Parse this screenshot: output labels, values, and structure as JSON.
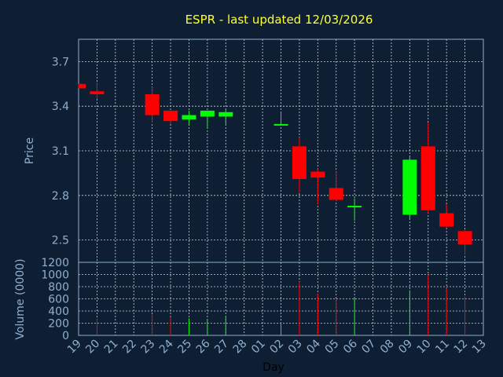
{
  "chart_data": {
    "type": "candlestick",
    "title": "ESPR - last updated 12/03/2026",
    "price_panel": {
      "ylabel": "Price",
      "yticks": [
        2.5,
        2.8,
        3.1,
        3.4,
        3.7
      ],
      "ylim": [
        2.35,
        3.85
      ]
    },
    "volume_panel": {
      "ylabel": "Volume (0000)",
      "yticks": [
        0,
        200,
        400,
        600,
        800,
        1000,
        1200
      ],
      "ylim": [
        0,
        1200
      ]
    },
    "xlabel": "Day",
    "x_ticks": [
      "19",
      "20",
      "21",
      "22",
      "23",
      "24",
      "25",
      "26",
      "27",
      "28",
      "01",
      "02",
      "03",
      "04",
      "05",
      "06",
      "07",
      "08",
      "09",
      "10",
      "11",
      "12",
      "13"
    ],
    "grid": true,
    "colors": {
      "up": "#00ff00",
      "down": "#ff0000",
      "background": "#0f1f33",
      "axis": "#8fb0d0",
      "title": "#ffff33"
    },
    "candles": [
      {
        "day": "19",
        "open": 3.55,
        "high": 3.55,
        "low": 3.52,
        "close": 3.52,
        "volume": 0
      },
      {
        "day": "20",
        "open": 3.5,
        "high": 3.56,
        "low": 3.45,
        "close": 3.48,
        "volume": 280
      },
      {
        "day": "23",
        "open": 3.48,
        "high": 3.53,
        "low": 3.29,
        "close": 3.34,
        "volume": 340
      },
      {
        "day": "24",
        "open": 3.37,
        "high": 3.37,
        "low": 3.28,
        "close": 3.3,
        "volume": 300
      },
      {
        "day": "25",
        "open": 3.31,
        "high": 3.37,
        "low": 3.28,
        "close": 3.34,
        "volume": 280
      },
      {
        "day": "26",
        "open": 3.33,
        "high": 3.37,
        "low": 3.25,
        "close": 3.37,
        "volume": 260
      },
      {
        "day": "27",
        "open": 3.33,
        "high": 3.38,
        "low": 3.28,
        "close": 3.36,
        "volume": 320
      },
      {
        "day": "02",
        "open": 3.27,
        "high": 3.36,
        "low": 3.27,
        "close": 3.28,
        "volume": 220
      },
      {
        "day": "03",
        "open": 3.13,
        "high": 3.19,
        "low": 2.82,
        "close": 2.91,
        "volume": 880
      },
      {
        "day": "04",
        "open": 2.96,
        "high": 2.98,
        "low": 2.74,
        "close": 2.92,
        "volume": 680
      },
      {
        "day": "05",
        "open": 2.85,
        "high": 2.96,
        "low": 2.76,
        "close": 2.77,
        "volume": 600
      },
      {
        "day": "06",
        "open": 2.72,
        "high": 2.78,
        "low": 2.63,
        "close": 2.73,
        "volume": 620
      },
      {
        "day": "09",
        "open": 2.67,
        "high": 3.06,
        "low": 2.64,
        "close": 3.04,
        "volume": 740
      },
      {
        "day": "10",
        "open": 3.13,
        "high": 3.29,
        "low": 2.68,
        "close": 2.7,
        "volume": 1000
      },
      {
        "day": "11",
        "open": 2.68,
        "high": 2.74,
        "low": 2.58,
        "close": 2.59,
        "volume": 780
      },
      {
        "day": "12",
        "open": 2.56,
        "high": 2.57,
        "low": 2.4,
        "close": 2.47,
        "volume": 640
      }
    ]
  }
}
